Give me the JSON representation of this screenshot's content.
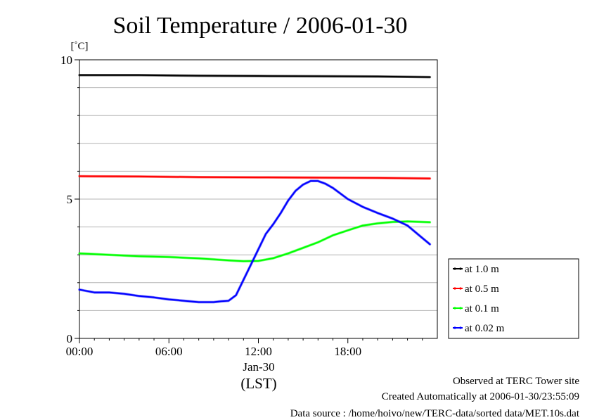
{
  "chart_data": {
    "type": "line",
    "title": "Soil Temperature / 2006-01-30",
    "yunit": "[˚C]",
    "ylim": [
      0,
      10
    ],
    "yticks": [
      {
        "value": 0,
        "label": "0"
      },
      {
        "value": 5,
        "label": "5"
      },
      {
        "value": 10,
        "label": "10"
      }
    ],
    "xlim": [
      0,
      24
    ],
    "xticks": [
      {
        "value": 0,
        "label": "00:00"
      },
      {
        "value": 6,
        "label": "06:00"
      },
      {
        "value": 12,
        "label": "12:00"
      },
      {
        "value": 18,
        "label": "18:00"
      }
    ],
    "xlabel_date": "Jan-30",
    "xlabel_zone": "(LST)",
    "grid": true,
    "legend_position": "right",
    "series": [
      {
        "name": "at 1.0 m",
        "color": "#000000",
        "x": [
          0,
          4,
          8,
          12,
          16,
          20,
          23.5
        ],
        "y": [
          9.45,
          9.45,
          9.43,
          9.42,
          9.41,
          9.4,
          9.38
        ]
      },
      {
        "name": "at 0.5 m",
        "color": "#ff0000",
        "x": [
          0,
          4,
          8,
          12,
          16,
          20,
          23.5
        ],
        "y": [
          5.82,
          5.81,
          5.79,
          5.78,
          5.77,
          5.76,
          5.74
        ]
      },
      {
        "name": "at 0.1 m",
        "color": "#00ff00",
        "x": [
          0,
          2,
          4,
          6,
          8,
          10,
          11,
          12,
          13,
          14,
          15,
          16,
          17,
          18,
          19,
          20,
          21,
          22,
          23,
          23.5
        ],
        "y": [
          3.05,
          3.0,
          2.95,
          2.92,
          2.87,
          2.8,
          2.77,
          2.78,
          2.88,
          3.05,
          3.25,
          3.45,
          3.7,
          3.88,
          4.05,
          4.13,
          4.18,
          4.2,
          4.18,
          4.17
        ]
      },
      {
        "name": "at 0.02 m",
        "color": "#0000ff",
        "x": [
          0,
          0.5,
          1,
          2,
          3,
          4,
          5,
          6,
          7,
          8,
          9,
          9.5,
          10,
          10.5,
          11,
          11.5,
          12,
          12.5,
          13,
          13.5,
          14,
          14.5,
          15,
          15.5,
          16,
          16.5,
          17,
          18,
          19,
          20,
          21,
          22,
          23,
          23.5
        ],
        "y": [
          1.75,
          1.7,
          1.65,
          1.65,
          1.6,
          1.52,
          1.47,
          1.4,
          1.35,
          1.3,
          1.3,
          1.33,
          1.35,
          1.55,
          2.1,
          2.65,
          3.2,
          3.75,
          4.1,
          4.5,
          4.95,
          5.3,
          5.52,
          5.65,
          5.65,
          5.55,
          5.4,
          5.0,
          4.72,
          4.5,
          4.3,
          4.05,
          3.6,
          3.38
        ]
      }
    ]
  },
  "footer": {
    "site": "Observed at TERC Tower site",
    "created": "Created Automatically at 2006-01-30/23:55:09",
    "source": "Data source : /home/hoivo/new/TERC-data/sorted  data/MET.10s.dat"
  }
}
